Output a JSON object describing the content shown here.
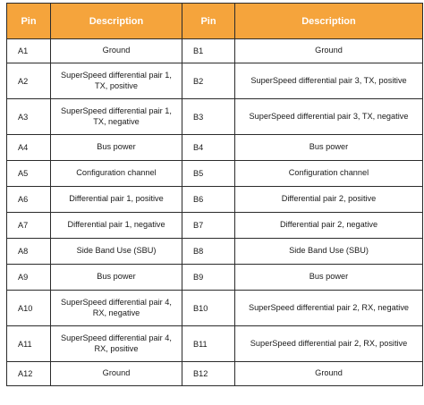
{
  "headers": {
    "pin_left": "Pin",
    "desc_left": "Description",
    "pin_right": "Pin",
    "desc_right": "Description"
  },
  "rows": [
    {
      "pin_a": "A1",
      "desc_a": "Ground",
      "pin_b": "B1",
      "desc_b": "Ground"
    },
    {
      "pin_a": "A2",
      "desc_a": "SuperSpeed differential pair 1,\nTX, positive",
      "pin_b": "B2",
      "desc_b": "SuperSpeed differential pair 3, TX, positive"
    },
    {
      "pin_a": "A3",
      "desc_a": "SuperSpeed differential pair 1,\nTX, negative",
      "pin_b": "B3",
      "desc_b": "SuperSpeed differential pair 3, TX, negative"
    },
    {
      "pin_a": "A4",
      "desc_a": "Bus power",
      "pin_b": "B4",
      "desc_b": "Bus power"
    },
    {
      "pin_a": "A5",
      "desc_a": "Configuration channel",
      "pin_b": "B5",
      "desc_b": "Configuration channel"
    },
    {
      "pin_a": "A6",
      "desc_a": "Differential pair 1, positive",
      "pin_b": "B6",
      "desc_b": "Differential pair 2, positive"
    },
    {
      "pin_a": "A7",
      "desc_a": "Differential pair 1, negative",
      "pin_b": "B7",
      "desc_b": "Differential pair 2, negative"
    },
    {
      "pin_a": "A8",
      "desc_a": "Side Band Use (SBU)",
      "pin_b": "B8",
      "desc_b": "Side Band Use (SBU)"
    },
    {
      "pin_a": "A9",
      "desc_a": "Bus power",
      "pin_b": "B9",
      "desc_b": "Bus power"
    },
    {
      "pin_a": "A10",
      "desc_a": "SuperSpeed differential pair 4,\nRX, negative",
      "pin_b": "B10",
      "desc_b": "SuperSpeed differential pair 2, RX, negative"
    },
    {
      "pin_a": "A11",
      "desc_a": "SuperSpeed differential pair 4,\nRX, positive",
      "pin_b": "B11",
      "desc_b": "SuperSpeed differential pair 2, RX, positive"
    },
    {
      "pin_a": "A12",
      "desc_a": "Ground",
      "pin_b": "B12",
      "desc_b": "Ground"
    }
  ],
  "colors": {
    "header_bg": "#f5a43c",
    "header_text": "#ffffff",
    "border": "#2b2b2b"
  }
}
